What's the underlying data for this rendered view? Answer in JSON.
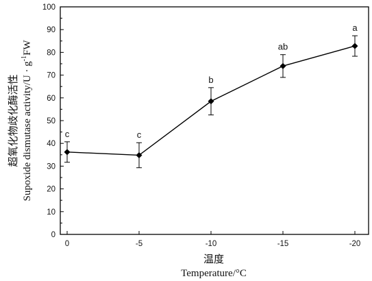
{
  "chart_data": {
    "type": "line",
    "title": "",
    "xlabel_zh": "温度",
    "xlabel_en": "Temperature/°C",
    "ylabel_zh": "超氧化物歧化酶活性",
    "ylabel_en": "Supoxide dismutase activity/U · g",
    "ylabel_en_sup": "-1",
    "ylabel_en_tail": "FW",
    "categories": [
      "0",
      "-5",
      "-10",
      "-15",
      "-20"
    ],
    "values": [
      36.2,
      34.8,
      58.5,
      74.0,
      82.8
    ],
    "error": [
      4.5,
      5.5,
      6.0,
      5.0,
      4.5
    ],
    "significance": [
      "c",
      "c",
      "b",
      "ab",
      "a"
    ],
    "ylim": [
      0,
      100
    ],
    "yticks": [
      0,
      10,
      20,
      30,
      40,
      50,
      60,
      70,
      80,
      90,
      100
    ],
    "marker": "diamond",
    "grid": false,
    "line_color": "#000000"
  }
}
